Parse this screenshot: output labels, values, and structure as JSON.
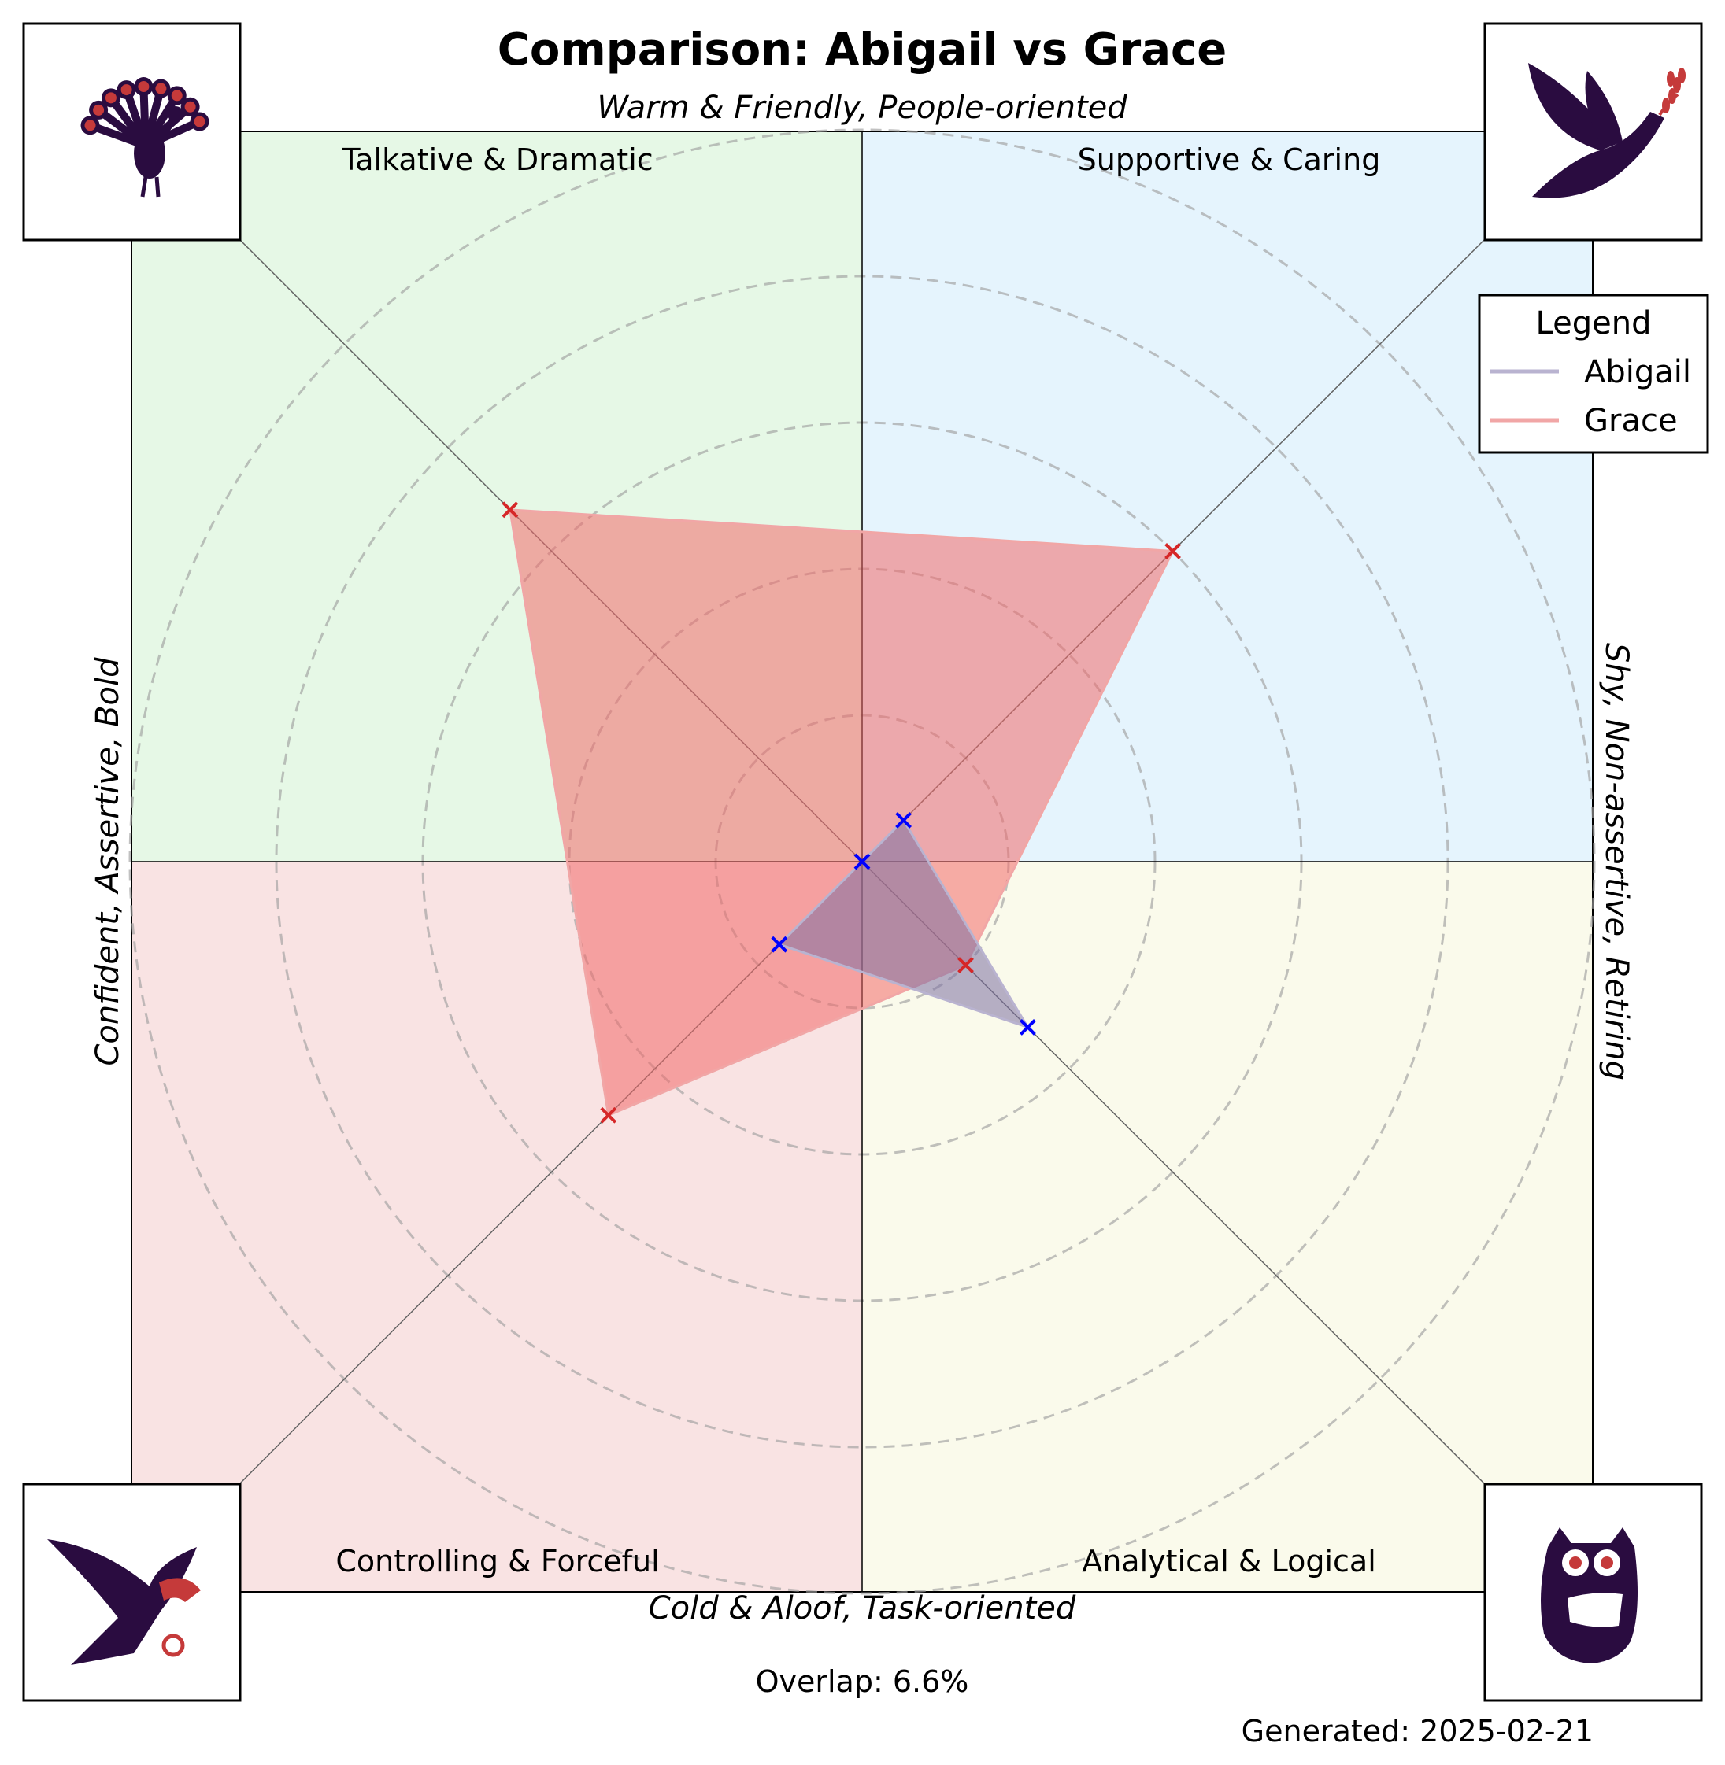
{
  "chart_data": {
    "type": "radar",
    "title": "Comparison: Abigail vs Grace",
    "axis_labels": {
      "top": "Warm & Friendly, People-oriented",
      "bottom": "Cold & Aloof, Task-oriented",
      "left": "Confident, Assertive, Bold",
      "right": "Shy, Non-assertive, Retiring"
    },
    "quadrants": [
      {
        "key": "top-left",
        "label": "Talkative & Dramatic",
        "color": "#e6f8e6",
        "icon": "peacock-icon"
      },
      {
        "key": "top-right",
        "label": "Supportive & Caring",
        "color": "#e5f4fd",
        "icon": "dove-icon"
      },
      {
        "key": "bottom-left",
        "label": "Controlling & Forceful",
        "color": "#f9e3e3",
        "icon": "eagle-icon"
      },
      {
        "key": "bottom-right",
        "label": "Analytical & Logical",
        "color": "#fafaeb",
        "icon": "owl-icon"
      }
    ],
    "radial_max": 10,
    "rings": [
      2,
      4,
      6,
      8,
      10
    ],
    "grid": true,
    "legend": {
      "title": "Legend",
      "position": "top-right"
    },
    "series": [
      {
        "name": "Abigail",
        "line_color": "#b9b3d0",
        "fill_color": "#7b6fa3",
        "marker_color": "#0000ff",
        "values": {
          "top-left": 0.0,
          "top-right": 0.8,
          "bottom-right": 3.2,
          "bottom-left": 1.6
        }
      },
      {
        "name": "Grace",
        "line_color": "#f1a6a6",
        "fill_color": "#f26a6a",
        "marker_color": "#d62728",
        "values": {
          "top-left": 6.8,
          "top-right": 6.0,
          "bottom-right": 2.0,
          "bottom-left": 4.9
        }
      }
    ],
    "annotations": {
      "overlap": "Overlap: 6.6%",
      "generated": "Generated: 2025-02-21"
    }
  }
}
